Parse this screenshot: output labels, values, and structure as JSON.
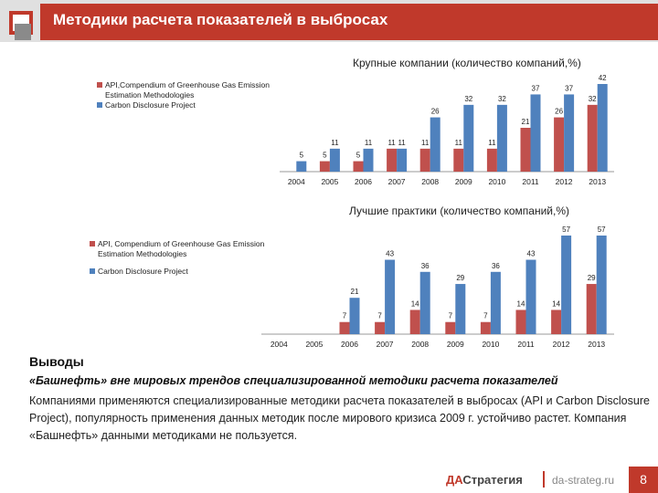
{
  "header": {
    "title": "Методики расчета показателей в выбросах"
  },
  "colors": {
    "red": "#c0504d",
    "blue": "#4f81bd",
    "accent": "#c0392b"
  },
  "chart_data": [
    {
      "type": "bar",
      "title": "Крупные компании (количество компаний,%)",
      "categories": [
        "2004",
        "2005",
        "2006",
        "2007",
        "2008",
        "2009",
        "2010",
        "2011",
        "2012",
        "2013"
      ],
      "series": [
        {
          "name": "API,Compendium of Greenhouse Gas Emission Estimation Methodologies",
          "color": "#c0504d",
          "values": [
            0,
            5,
            5,
            11,
            11,
            11,
            11,
            21,
            26,
            32
          ]
        },
        {
          "name": "Carbon Disclosure Project",
          "color": "#4f81bd",
          "values": [
            5,
            11,
            11,
            11,
            26,
            32,
            32,
            37,
            37,
            42
          ]
        }
      ],
      "data_labels": {
        "red": [
          "",
          "5",
          "5",
          "11",
          "11",
          "11",
          "11",
          "21",
          "26",
          "32"
        ],
        "blue": [
          "5",
          "11",
          "11",
          "11",
          "26",
          "32",
          "32",
          "37",
          "37",
          "42"
        ]
      },
      "ylim": [
        0,
        42
      ],
      "legend_position": "top-left"
    },
    {
      "type": "bar",
      "title": "Лучшие практики (количество компаний,%)",
      "categories": [
        "2004",
        "2005",
        "2006",
        "2007",
        "2008",
        "2009",
        "2010",
        "2011",
        "2012",
        "2013"
      ],
      "series": [
        {
          "name": "API, Compendium of Greenhouse Gas Emission Estimation Methodologies",
          "color": "#c0504d",
          "values": [
            0,
            0,
            7,
            7,
            14,
            7,
            7,
            14,
            14,
            29
          ]
        },
        {
          "name": "Carbon Disclosure Project",
          "color": "#4f81bd",
          "values": [
            0,
            0,
            21,
            43,
            36,
            29,
            36,
            43,
            57,
            57
          ]
        }
      ],
      "data_labels": {
        "red": [
          "",
          "",
          "7",
          "7",
          "14",
          "7",
          "7",
          "14",
          "14",
          "29"
        ],
        "blue": [
          "",
          "",
          "21",
          "43",
          "36",
          "29",
          "36",
          "43",
          "57",
          "57"
        ]
      },
      "ylim": [
        0,
        57
      ],
      "legend_position": "left"
    }
  ],
  "conclusions": {
    "heading": "Выводы",
    "subheading": "«Башнефть» вне мировых трендов специализированной методики расчета показателей",
    "body": "Компаниями применяются специализированные методики расчета показателей в выбросах (API и Carbon Disclosure Project), популярность применения данных методик после мирового кризиса 2009 г. устойчиво растет.  Компания «Башнефть» данными методиками не пользуется."
  },
  "footer": {
    "logo_part1": "ДА",
    "logo_part2": "Стратегия",
    "site": "da-strateg.ru",
    "page_number": "8"
  }
}
